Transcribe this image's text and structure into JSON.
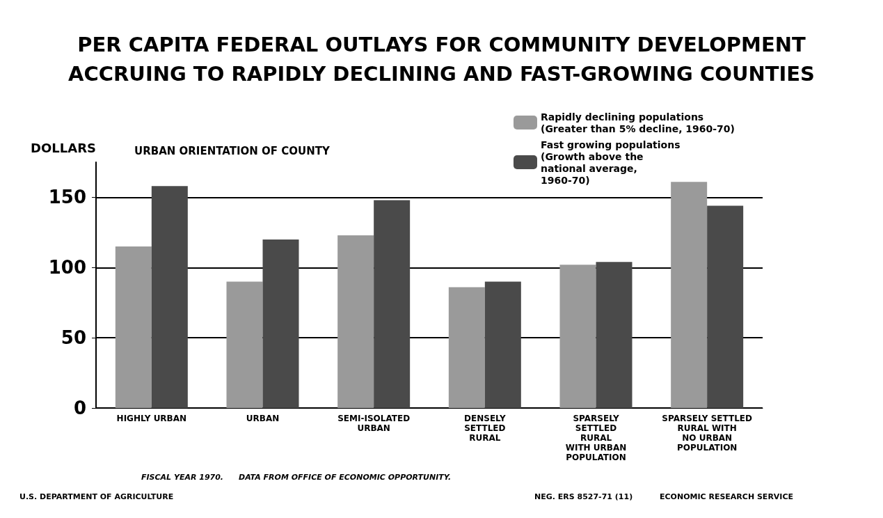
{
  "chart_data": {
    "type": "bar",
    "title": "PER CAPITA FEDERAL OUTLAYS FOR COMMUNITY DEVELOPMENT\nACCRUING TO RAPIDLY DECLINING AND FAST-GROWING COUNTIES",
    "subtitle": "URBAN ORIENTATION OF COUNTY",
    "ylabel": "DOLLARS",
    "categories": [
      "HIGHLY URBAN",
      "URBAN",
      "SEMI-ISOLATED\nURBAN",
      "DENSELY\nSETTLED\nRURAL",
      "SPARSELY\nSETTLED\nRURAL\nWITH URBAN\nPOPULATION",
      "SPARSELY SETTLED\nRURAL WITH\nNO URBAN\nPOPULATION"
    ],
    "series": [
      {
        "name": "Rapidly declining populations\n(Greater than 5% decline, 1960-70)",
        "color": "#9a9a9a",
        "values": [
          115,
          90,
          123,
          86,
          102,
          161
        ]
      },
      {
        "name": "Fast growing populations\n(Growth above the\nnational average,\n1960-70)",
        "color": "#4a4a4a",
        "values": [
          158,
          120,
          148,
          90,
          104,
          144
        ]
      }
    ],
    "ylim": [
      0,
      175
    ],
    "yticks": [
      0,
      50,
      100,
      150
    ],
    "grid": "y",
    "legend": "top right",
    "annotations": [
      "FISCAL YEAR 1970.",
      "DATA FROM OFFICE OF ECONOMIC OPPORTUNITY.",
      "U.S. DEPARTMENT OF AGRICULTURE",
      "NEG. ERS 8527-71 (11)",
      "ECONOMIC RESEARCH SERVICE"
    ]
  }
}
